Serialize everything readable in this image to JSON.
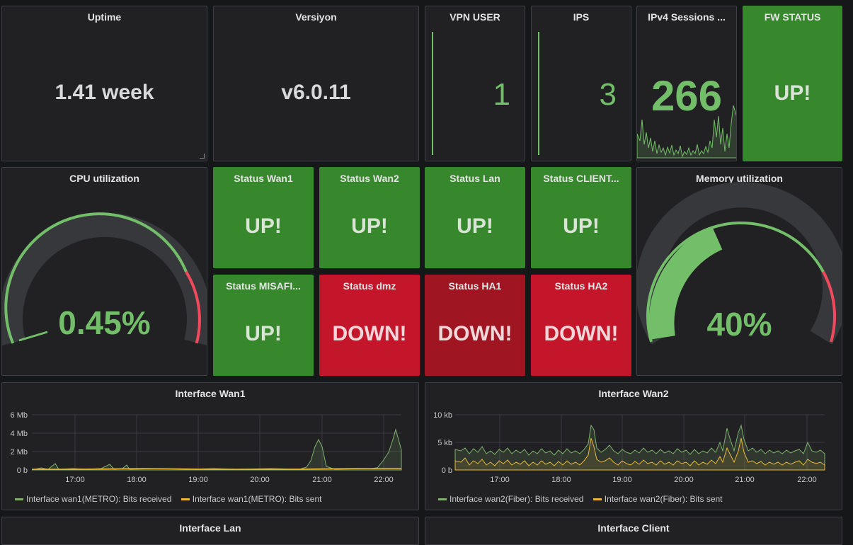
{
  "stats": {
    "uptime": {
      "title": "Uptime",
      "value": "1.41 week"
    },
    "version": {
      "title": "Versiyon",
      "value": "v6.0.11"
    },
    "vpn": {
      "title": "VPN USER",
      "value": "1"
    },
    "ips": {
      "title": "IPS",
      "value": "3"
    },
    "ipv4": {
      "title": "IPv4 Sessions ...",
      "value": "266"
    },
    "fw": {
      "title": "FW STATUS",
      "value": "UP!"
    }
  },
  "gauges": {
    "cpu": {
      "title": "CPU utilization",
      "value": "0.45%",
      "percent": 0.45
    },
    "memory": {
      "title": "Memory utilization",
      "value": "40%",
      "percent": 40
    }
  },
  "statuses": [
    {
      "title": "Status Wan1",
      "value": "UP!",
      "state": "up"
    },
    {
      "title": "Status Wan2",
      "value": "UP!",
      "state": "up"
    },
    {
      "title": "Status Lan",
      "value": "UP!",
      "state": "up"
    },
    {
      "title": "Status CLIENT...",
      "value": "UP!",
      "state": "up"
    },
    {
      "title": "Status MISAFI...",
      "value": "UP!",
      "state": "up"
    },
    {
      "title": "Status dmz",
      "value": "DOWN!",
      "state": "down"
    },
    {
      "title": "Status HA1",
      "value": "DOWN!",
      "state": "down"
    },
    {
      "title": "Status HA2",
      "value": "DOWN!",
      "state": "down"
    }
  ],
  "charts": {
    "wan1": {
      "title": "Interface Wan1",
      "y_ticks": [
        "6 Mb",
        "4 Mb",
        "2 Mb",
        "0 b"
      ],
      "x_ticks": [
        "17:00",
        "18:00",
        "19:00",
        "20:00",
        "21:00",
        "22:00"
      ],
      "legend": [
        "Interface wan1(METRO): Bits received",
        "Interface wan1(METRO): Bits sent"
      ]
    },
    "wan2": {
      "title": "Interface Wan2",
      "y_ticks": [
        "10 kb",
        "5 kb",
        "0 b"
      ],
      "x_ticks": [
        "17:00",
        "18:00",
        "19:00",
        "20:00",
        "21:00",
        "22:00"
      ],
      "legend": [
        "Interface wan2(Fiber): Bits received",
        "Interface wan2(Fiber): Bits sent"
      ]
    }
  },
  "bottom": {
    "lan": {
      "title": "Interface Lan"
    },
    "client": {
      "title": "Interface Client"
    }
  },
  "colors": {
    "green": "#37872d",
    "red": "#c4162a",
    "value_green": "#73bf69",
    "received": "#7eb26d",
    "sent": "#eab839"
  }
}
